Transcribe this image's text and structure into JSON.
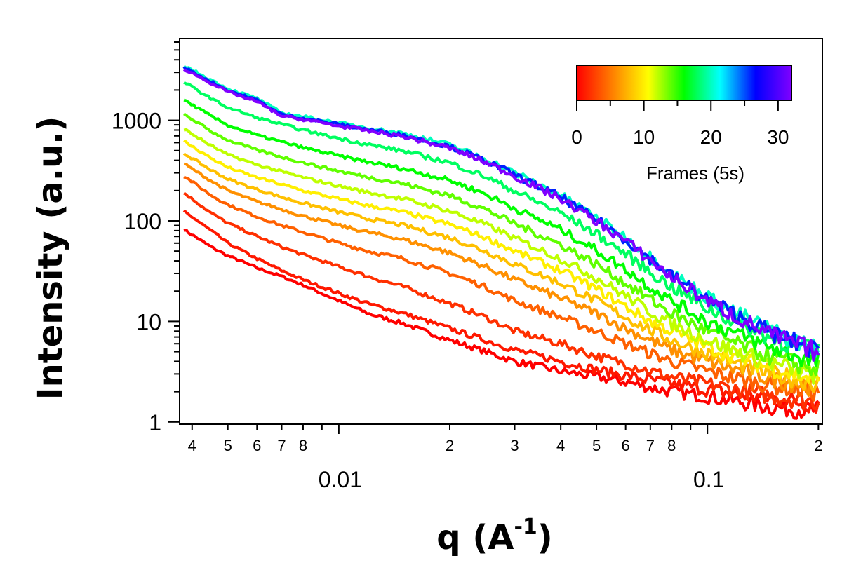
{
  "chart_data": {
    "type": "line",
    "xlabel_main": "q (A",
    "xlabel_sup": "-1",
    "xlabel_close": ")",
    "ylabel": "Intensity (a.u.)",
    "xscale": "log",
    "yscale": "log",
    "xlim": [
      0.0037,
      0.205
    ],
    "ylim": [
      0.95,
      6500
    ],
    "grid": false,
    "x_major_ticks": [
      {
        "value": 0.01,
        "label": "0.01"
      },
      {
        "value": 0.1,
        "label": "0.1"
      }
    ],
    "x_minor_ticks": [
      {
        "value": 0.004,
        "label": "4"
      },
      {
        "value": 0.005,
        "label": "5"
      },
      {
        "value": 0.006,
        "label": "6"
      },
      {
        "value": 0.007,
        "label": "7"
      },
      {
        "value": 0.008,
        "label": "8"
      },
      {
        "value": 0.02,
        "label": "2"
      },
      {
        "value": 0.03,
        "label": "3"
      },
      {
        "value": 0.04,
        "label": "4"
      },
      {
        "value": 0.05,
        "label": "5"
      },
      {
        "value": 0.06,
        "label": "6"
      },
      {
        "value": 0.07,
        "label": "7"
      },
      {
        "value": 0.08,
        "label": "8"
      },
      {
        "value": 0.2,
        "label": "2"
      }
    ],
    "y_major_ticks": [
      {
        "value": 1,
        "label": "1"
      },
      {
        "value": 10,
        "label": "10"
      },
      {
        "value": 100,
        "label": "100"
      },
      {
        "value": 1000,
        "label": "1000"
      }
    ],
    "colorbar": {
      "label": "Frames (5s)",
      "range": [
        0,
        32
      ],
      "ticks": [
        {
          "value": 0,
          "label": "0"
        },
        {
          "value": 10,
          "label": "10"
        },
        {
          "value": 20,
          "label": "20"
        },
        {
          "value": 30,
          "label": "30"
        }
      ],
      "stops": [
        "#ff0000",
        "#ff8000",
        "#ffff00",
        "#00ff00",
        "#00ffff",
        "#0000ff",
        "#8000ff"
      ],
      "placement": "top-right"
    },
    "x": [
      0.0038,
      0.0045,
      0.005,
      0.006,
      0.007,
      0.008,
      0.01,
      0.012,
      0.015,
      0.02,
      0.025,
      0.03,
      0.04,
      0.05,
      0.06,
      0.07,
      0.08,
      0.1,
      0.12,
      0.15,
      0.2
    ],
    "series": [
      {
        "frame": 0,
        "values": [
          82,
          55,
          45,
          34,
          28,
          23,
          16,
          12,
          9.5,
          6.5,
          5.0,
          4.0,
          3.2,
          2.8,
          2.5,
          2.2,
          2.0,
          1.8,
          1.6,
          1.4,
          1.3
        ]
      },
      {
        "frame": 1,
        "values": [
          125,
          80,
          60,
          42,
          32,
          26,
          19,
          15,
          12,
          8.5,
          6.5,
          5.2,
          4.0,
          3.3,
          2.9,
          2.6,
          2.4,
          2.1,
          1.9,
          1.7,
          1.5
        ]
      },
      {
        "frame": 2,
        "values": [
          190,
          120,
          95,
          70,
          55,
          46,
          35,
          28,
          22,
          15,
          11,
          8,
          6,
          4.5,
          3.8,
          3.2,
          2.8,
          2.4,
          2.1,
          1.8,
          1.6
        ]
      },
      {
        "frame": 4,
        "values": [
          280,
          180,
          145,
          110,
          90,
          77,
          60,
          50,
          42,
          30,
          22,
          16,
          11,
          8,
          6,
          4.8,
          4.0,
          3.2,
          2.7,
          2.3,
          2.0
        ]
      },
      {
        "frame": 6,
        "values": [
          370,
          250,
          200,
          155,
          130,
          112,
          90,
          77,
          65,
          48,
          35,
          26,
          17,
          12,
          8.5,
          6.5,
          5.2,
          4.0,
          3.3,
          2.7,
          2.2
        ]
      },
      {
        "frame": 8,
        "values": [
          470,
          320,
          260,
          205,
          172,
          150,
          122,
          105,
          90,
          68,
          50,
          37,
          24,
          16,
          11,
          8.2,
          6.5,
          4.8,
          3.8,
          3.0,
          2.4
        ]
      },
      {
        "frame": 10,
        "values": [
          620,
          420,
          340,
          270,
          230,
          200,
          165,
          142,
          122,
          92,
          68,
          50,
          32,
          21,
          14,
          10,
          8,
          5.6,
          4.4,
          3.4,
          2.6
        ]
      },
      {
        "frame": 12,
        "values": [
          820,
          560,
          455,
          360,
          308,
          270,
          222,
          192,
          165,
          125,
          92,
          67,
          42,
          27,
          18,
          12.5,
          9.5,
          6.5,
          5.0,
          3.8,
          2.9
        ]
      },
      {
        "frame": 14,
        "values": [
          1150,
          780,
          635,
          505,
          432,
          380,
          312,
          272,
          233,
          178,
          130,
          94,
          58,
          37,
          24,
          16.5,
          12,
          8,
          6,
          4.4,
          3.3
        ]
      },
      {
        "frame": 16,
        "values": [
          1600,
          1100,
          895,
          710,
          610,
          535,
          442,
          385,
          330,
          253,
          185,
          133,
          82,
          51,
          33,
          22,
          16,
          10,
          7.5,
          5.4,
          3.9
        ]
      },
      {
        "frame": 18,
        "values": [
          2400,
          1650,
          1340,
          1060,
          910,
          800,
          660,
          575,
          493,
          378,
          275,
          198,
          120,
          74,
          47,
          31,
          22,
          13.5,
          9.8,
          6.8,
          4.8
        ]
      },
      {
        "frame": 20,
        "values": [
          3500,
          2520,
          2060,
          1650,
          1180,
          1090,
          940,
          840,
          740,
          570,
          415,
          300,
          180,
          108,
          68,
          44,
          30,
          17.5,
          12,
          8,
          5.2
        ]
      },
      {
        "frame": 26,
        "values": [
          3350,
          2430,
          1990,
          1590,
          1140,
          1050,
          910,
          810,
          712,
          548,
          398,
          287,
          172,
          103,
          65,
          42,
          28.5,
          16.5,
          11.5,
          7.6,
          5.0
        ]
      },
      {
        "frame": 32,
        "values": [
          3250,
          2350,
          1920,
          1530,
          1100,
          1020,
          880,
          785,
          690,
          530,
          385,
          278,
          166,
          99,
          63,
          40.5,
          27.5,
          16,
          11,
          7.3,
          4.9
        ]
      }
    ]
  }
}
